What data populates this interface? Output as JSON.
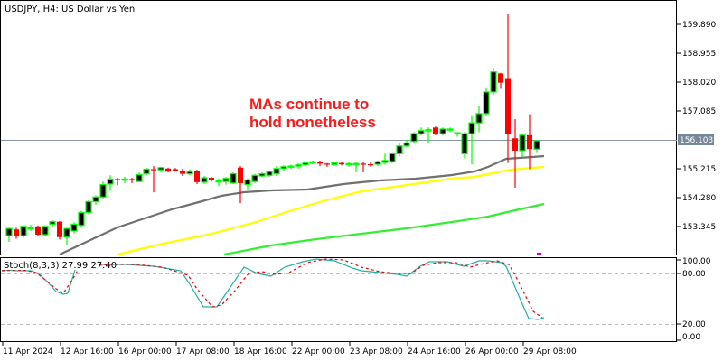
{
  "window": {
    "title": "USDJPY, H4:  US Dollar vs Yen",
    "symbol": "USDJPY",
    "timeframe": "H4",
    "description": "US Dollar vs Yen"
  },
  "annotation": {
    "line1": "MAs continue to",
    "line2": "hold nonetheless",
    "color": "#ff1a1a"
  },
  "price_axis": {
    "ticks": [
      "159.890",
      "158.955",
      "158.020",
      "157.085",
      "155.215",
      "154.280",
      "153.345"
    ],
    "current_price": "156.103"
  },
  "stoch": {
    "label": "Stoch(8,3,3) 27.99 27.40",
    "name": "Stoch(8,3,3)",
    "main_value": "27.99",
    "signal_value": "27.40",
    "ticks": [
      "100.00",
      "80.00",
      "20.00",
      "0.00"
    ]
  },
  "time_axis": {
    "labels": [
      "11 Apr 2024",
      "12 Apr 16:00",
      "16 Apr 00:00",
      "17 Apr 08:00",
      "18 Apr 16:00",
      "22 Apr 00:00",
      "23 Apr 08:00",
      "24 Apr 16:00",
      "26 Apr 00:00",
      "29 Apr 08:00"
    ]
  },
  "colors": {
    "bull_outline": "#00ff00",
    "bull_body": "#000000",
    "bear": "#ff0000",
    "ma_fast": "#707070",
    "ma_mid": "#ffff00",
    "ma_slow": "#33ee33",
    "stoch_main": "#20b2aa",
    "stoch_signal": "#ff0000",
    "price_line": "#8899aa"
  },
  "chart_data": [
    {
      "type": "candlestick",
      "title": "USDJPY, H4: US Dollar vs Yen",
      "xlabel": "",
      "ylabel": "Price",
      "ylim": [
        152.7,
        160.6
      ],
      "x_ticks": [
        "11 Apr 2024",
        "12 Apr 16:00",
        "16 Apr 00:00",
        "17 Apr 08:00",
        "18 Apr 16:00",
        "22 Apr 00:00",
        "23 Apr 08:00",
        "24 Apr 16:00",
        "26 Apr 00:00",
        "29 Apr 08:00"
      ],
      "y_ticks": [
        159.89,
        158.955,
        158.02,
        157.085,
        156.103,
        155.215,
        154.28,
        153.345
      ],
      "current_price": 156.103,
      "candles": [
        {
          "o": 153.05,
          "h": 153.3,
          "l": 152.85,
          "c": 153.28
        },
        {
          "o": 153.25,
          "h": 153.3,
          "l": 152.95,
          "c": 153.05
        },
        {
          "o": 153.05,
          "h": 153.38,
          "l": 152.98,
          "c": 153.35
        },
        {
          "o": 153.28,
          "h": 153.4,
          "l": 153.2,
          "c": 153.3
        },
        {
          "o": 153.35,
          "h": 153.38,
          "l": 153.05,
          "c": 153.08
        },
        {
          "o": 153.08,
          "h": 153.38,
          "l": 153.05,
          "c": 153.35
        },
        {
          "o": 153.42,
          "h": 153.55,
          "l": 153.3,
          "c": 153.5
        },
        {
          "o": 153.5,
          "h": 153.52,
          "l": 152.92,
          "c": 153.0
        },
        {
          "o": 153.0,
          "h": 153.3,
          "l": 152.75,
          "c": 153.28
        },
        {
          "o": 153.2,
          "h": 153.48,
          "l": 153.12,
          "c": 153.42
        },
        {
          "o": 153.38,
          "h": 153.85,
          "l": 153.3,
          "c": 153.8
        },
        {
          "o": 153.8,
          "h": 154.2,
          "l": 153.75,
          "c": 154.15
        },
        {
          "o": 154.15,
          "h": 154.35,
          "l": 154.05,
          "c": 154.3
        },
        {
          "o": 154.3,
          "h": 154.8,
          "l": 154.25,
          "c": 154.7
        },
        {
          "o": 154.72,
          "h": 155.0,
          "l": 154.5,
          "c": 154.88
        },
        {
          "o": 154.88,
          "h": 154.92,
          "l": 154.68,
          "c": 154.86
        },
        {
          "o": 154.86,
          "h": 154.95,
          "l": 154.75,
          "c": 154.88
        },
        {
          "o": 154.88,
          "h": 154.92,
          "l": 154.75,
          "c": 154.86
        },
        {
          "o": 154.8,
          "h": 155.1,
          "l": 154.78,
          "c": 155.02
        },
        {
          "o": 155.05,
          "h": 155.25,
          "l": 155.0,
          "c": 155.2
        },
        {
          "o": 155.2,
          "h": 155.3,
          "l": 154.45,
          "c": 155.18
        },
        {
          "o": 155.18,
          "h": 155.28,
          "l": 155.1,
          "c": 155.25
        },
        {
          "o": 155.22,
          "h": 155.25,
          "l": 155.1,
          "c": 155.12
        },
        {
          "o": 155.2,
          "h": 155.24,
          "l": 155.12,
          "c": 155.14
        },
        {
          "o": 155.14,
          "h": 155.22,
          "l": 154.98,
          "c": 155.05
        },
        {
          "o": 155.05,
          "h": 155.2,
          "l": 155.0,
          "c": 155.12
        },
        {
          "o": 155.15,
          "h": 155.18,
          "l": 154.72,
          "c": 154.78
        },
        {
          "o": 154.78,
          "h": 154.98,
          "l": 154.72,
          "c": 154.92
        },
        {
          "o": 154.92,
          "h": 154.95,
          "l": 154.8,
          "c": 154.85
        },
        {
          "o": 154.82,
          "h": 154.9,
          "l": 154.65,
          "c": 154.82
        },
        {
          "o": 154.8,
          "h": 154.95,
          "l": 154.7,
          "c": 154.9
        },
        {
          "o": 154.75,
          "h": 155.1,
          "l": 154.72,
          "c": 155.05
        },
        {
          "o": 155.25,
          "h": 155.3,
          "l": 154.1,
          "c": 154.75
        },
        {
          "o": 154.7,
          "h": 154.9,
          "l": 154.55,
          "c": 154.85
        },
        {
          "o": 154.8,
          "h": 155.05,
          "l": 154.75,
          "c": 155.0
        },
        {
          "o": 154.98,
          "h": 155.1,
          "l": 154.95,
          "c": 155.05
        },
        {
          "o": 155.0,
          "h": 155.15,
          "l": 154.95,
          "c": 155.12
        },
        {
          "o": 155.05,
          "h": 155.3,
          "l": 154.98,
          "c": 155.22
        },
        {
          "o": 155.22,
          "h": 155.32,
          "l": 155.15,
          "c": 155.28
        },
        {
          "o": 155.28,
          "h": 155.35,
          "l": 155.2,
          "c": 155.3
        },
        {
          "o": 155.3,
          "h": 155.4,
          "l": 155.22,
          "c": 155.34
        },
        {
          "o": 155.34,
          "h": 155.45,
          "l": 155.3,
          "c": 155.4
        },
        {
          "o": 155.4,
          "h": 155.48,
          "l": 155.36,
          "c": 155.44
        },
        {
          "o": 155.44,
          "h": 155.48,
          "l": 155.3,
          "c": 155.38
        },
        {
          "o": 155.38,
          "h": 155.4,
          "l": 155.28,
          "c": 155.35
        },
        {
          "o": 155.35,
          "h": 155.42,
          "l": 155.3,
          "c": 155.4
        },
        {
          "o": 155.4,
          "h": 155.45,
          "l": 155.32,
          "c": 155.36
        },
        {
          "o": 155.36,
          "h": 155.42,
          "l": 155.28,
          "c": 155.38
        },
        {
          "o": 155.38,
          "h": 155.42,
          "l": 155.1,
          "c": 155.38
        },
        {
          "o": 155.38,
          "h": 155.42,
          "l": 155.1,
          "c": 155.36
        },
        {
          "o": 155.36,
          "h": 155.42,
          "l": 155.28,
          "c": 155.34
        },
        {
          "o": 155.36,
          "h": 155.48,
          "l": 155.3,
          "c": 155.44
        },
        {
          "o": 155.42,
          "h": 155.7,
          "l": 155.35,
          "c": 155.48
        },
        {
          "o": 155.45,
          "h": 155.75,
          "l": 155.4,
          "c": 155.7
        },
        {
          "o": 155.7,
          "h": 156.05,
          "l": 155.62,
          "c": 155.95
        },
        {
          "o": 155.95,
          "h": 156.15,
          "l": 155.9,
          "c": 156.05
        },
        {
          "o": 156.1,
          "h": 156.4,
          "l": 156.05,
          "c": 156.35
        },
        {
          "o": 156.35,
          "h": 156.55,
          "l": 156.3,
          "c": 156.45
        },
        {
          "o": 156.45,
          "h": 156.55,
          "l": 156.05,
          "c": 156.48
        },
        {
          "o": 156.55,
          "h": 156.58,
          "l": 156.3,
          "c": 156.35
        },
        {
          "o": 156.35,
          "h": 156.55,
          "l": 156.3,
          "c": 156.5
        },
        {
          "o": 156.48,
          "h": 156.55,
          "l": 156.4,
          "c": 156.5
        },
        {
          "o": 156.35,
          "h": 156.4,
          "l": 156.25,
          "c": 156.38
        },
        {
          "o": 155.7,
          "h": 156.4,
          "l": 155.55,
          "c": 156.35
        },
        {
          "o": 156.35,
          "h": 156.95,
          "l": 155.35,
          "c": 156.7
        },
        {
          "o": 156.7,
          "h": 157.25,
          "l": 156.4,
          "c": 157.0
        },
        {
          "o": 157.0,
          "h": 157.85,
          "l": 156.95,
          "c": 157.7
        },
        {
          "o": 157.7,
          "h": 158.48,
          "l": 157.6,
          "c": 158.35
        },
        {
          "o": 158.3,
          "h": 158.32,
          "l": 157.8,
          "c": 158.0
        },
        {
          "o": 158.15,
          "h": 160.24,
          "l": 155.4,
          "c": 156.35
        },
        {
          "o": 156.2,
          "h": 156.82,
          "l": 154.6,
          "c": 155.8
        },
        {
          "o": 155.8,
          "h": 156.35,
          "l": 155.6,
          "c": 156.3
        },
        {
          "o": 156.3,
          "h": 156.98,
          "l": 155.2,
          "c": 155.85
        },
        {
          "o": 155.85,
          "h": 156.1,
          "l": 155.75,
          "c": 156.12
        }
      ],
      "ma_lines": [
        {
          "name": "MA fast (grey)",
          "color": "#707070",
          "start": 152.62,
          "end": 155.68
        },
        {
          "name": "MA mid (yellow)",
          "color": "#ffff00",
          "start": 152.7,
          "end": 155.3
        },
        {
          "name": "MA slow (green)",
          "color": "#33ee33",
          "start": 152.7,
          "end": 154.22
        }
      ]
    },
    {
      "type": "line",
      "title": "Stoch(8,3,3) 27.99 27.40",
      "ylim": [
        0,
        100
      ],
      "y_ticks": [
        100,
        80,
        20,
        0
      ],
      "levels": [
        80,
        20
      ],
      "series": [
        {
          "name": "Main %K",
          "color": "#20b2aa",
          "last": 27.99
        },
        {
          "name": "Signal %D",
          "color": "#ff0000",
          "dashed": true,
          "last": 27.4
        }
      ]
    }
  ]
}
